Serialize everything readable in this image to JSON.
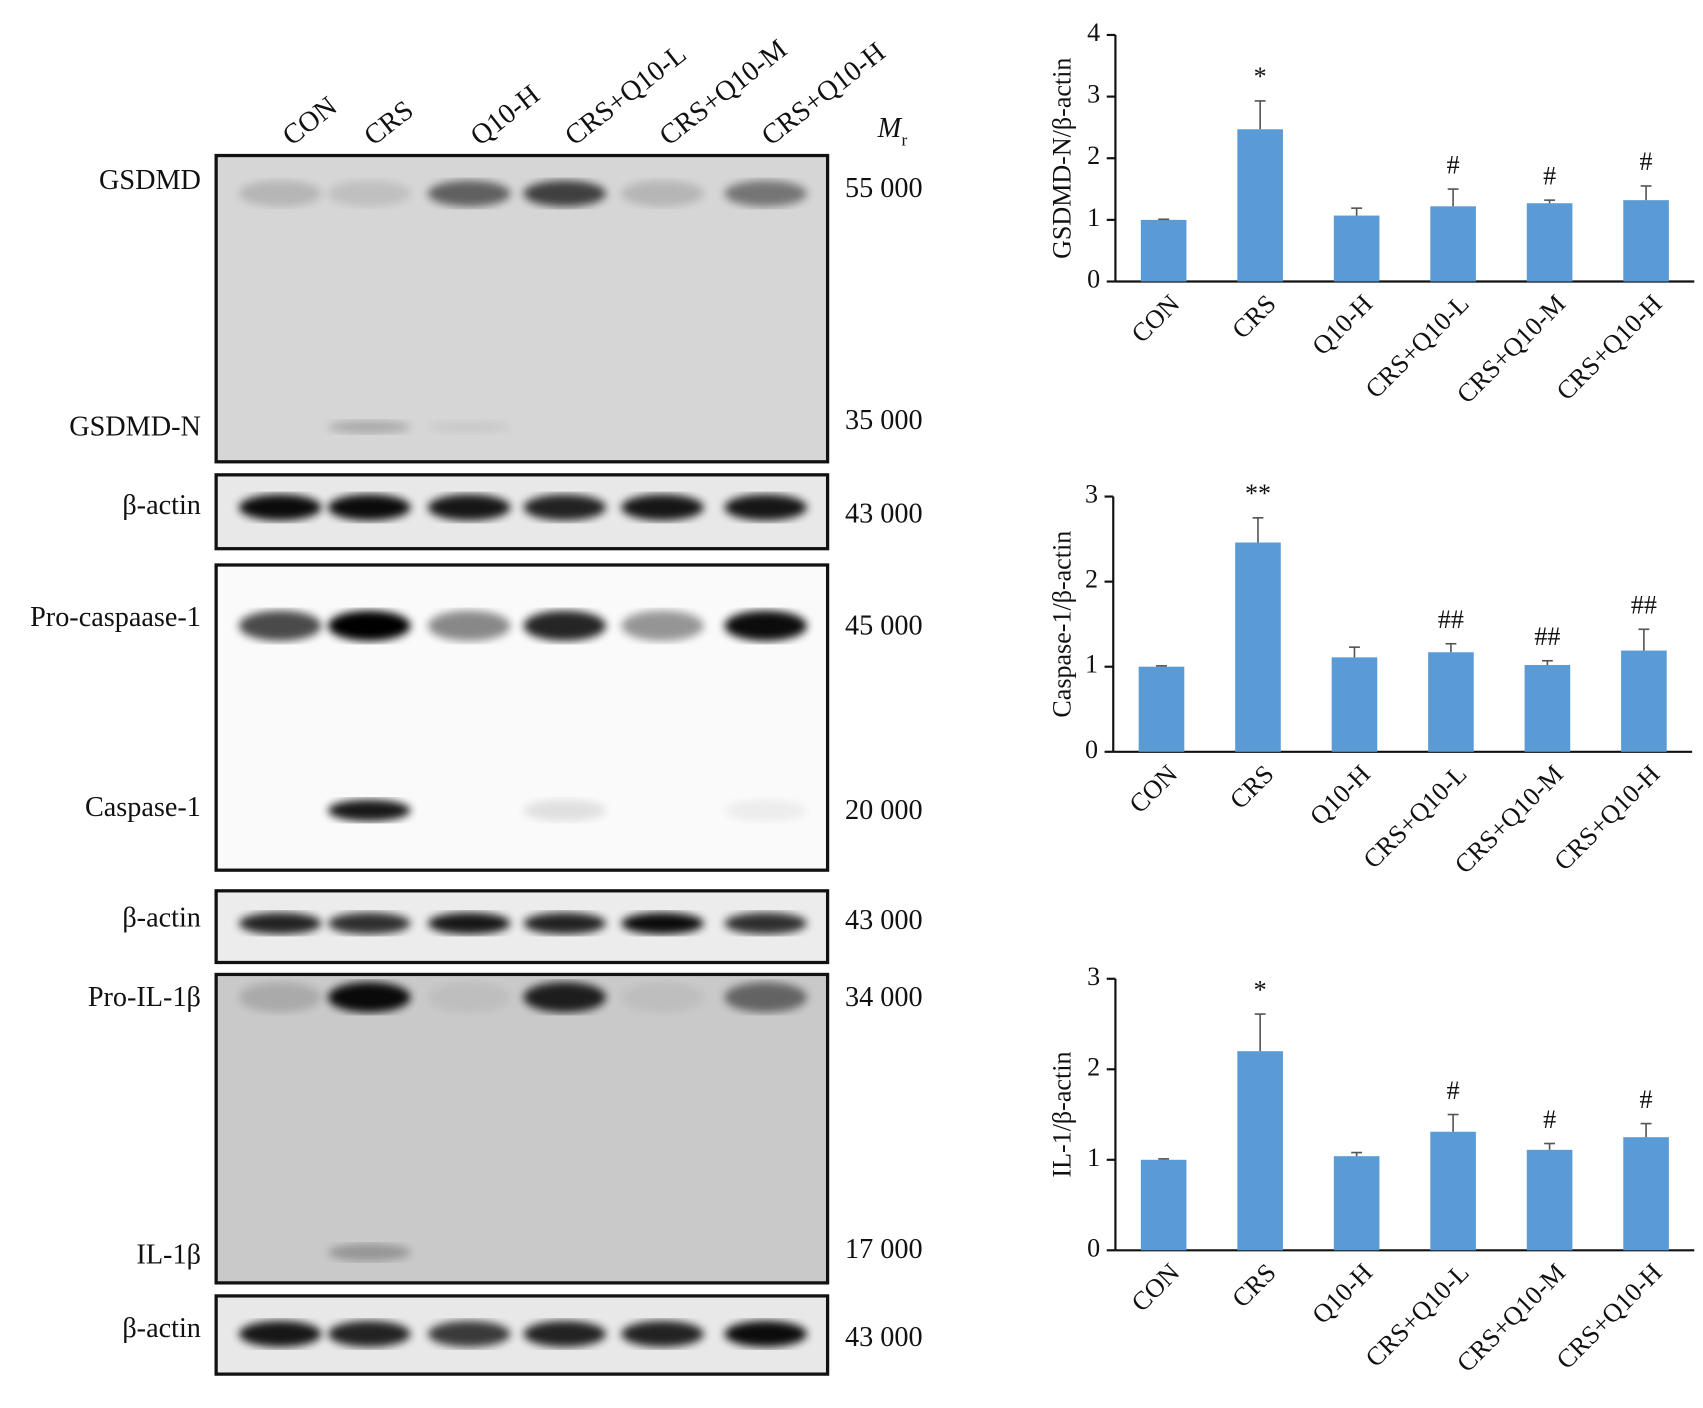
{
  "figure": {
    "lanes": [
      "CON",
      "CRS",
      "Q10-H",
      "CRS+Q10-L",
      "CRS+Q10-M",
      "CRS+Q10-H"
    ],
    "mr_label": {
      "main": "M",
      "sub": "r"
    },
    "rows": [
      {
        "label": "GSDMD",
        "mw": "55 000"
      },
      {
        "label": "GSDMD-N",
        "mw": "35 000"
      },
      {
        "label": "β-actin",
        "mw": "43 000"
      },
      {
        "label": "Pro-caspaase-1",
        "mw": "45 000"
      },
      {
        "label": "Caspase-1",
        "mw": "20 000"
      },
      {
        "label": "β-actin",
        "mw": "43 000"
      },
      {
        "label": "Pro-IL-1β",
        "mw": "34 000"
      },
      {
        "label": "IL-1β",
        "mw": "17 000"
      },
      {
        "label": "β-actin",
        "mw": "43 000"
      }
    ]
  },
  "chart_data": [
    {
      "type": "bar",
      "y_label": "GSDMD-N/β-actin",
      "color": "#5b9bd5",
      "categories": [
        "CON",
        "CRS",
        "Q10-H",
        "CRS+Q10-L",
        "CRS+Q10-M",
        "CRS+Q10-H"
      ],
      "values": [
        1.0,
        2.47,
        1.07,
        1.22,
        1.27,
        1.32
      ],
      "errors": [
        0.01,
        0.46,
        0.12,
        0.28,
        0.05,
        0.23
      ],
      "annotations": [
        null,
        "*",
        null,
        "#",
        "#",
        "#"
      ],
      "ylim": [
        0,
        4
      ],
      "yticks": [
        0,
        1,
        2,
        3,
        4
      ]
    },
    {
      "type": "bar",
      "y_label": "Caspase-1/β-actin",
      "color": "#5b9bd5",
      "categories": [
        "CON",
        "CRS",
        "Q10-H",
        "CRS+Q10-L",
        "CRS+Q10-M",
        "CRS+Q10-H"
      ],
      "values": [
        1.0,
        2.46,
        1.11,
        1.17,
        1.02,
        1.19
      ],
      "errors": [
        0.01,
        0.29,
        0.12,
        0.1,
        0.05,
        0.25
      ],
      "annotations": [
        null,
        "**",
        null,
        "##",
        "##",
        "##"
      ],
      "ylim": [
        0,
        3
      ],
      "yticks": [
        0,
        1,
        2,
        3
      ]
    },
    {
      "type": "bar",
      "y_label": "IL-1/β-actin",
      "color": "#5b9bd5",
      "categories": [
        "CON",
        "CRS",
        "Q10-H",
        "CRS+Q10-L",
        "CRS+Q10-M",
        "CRS+Q10-H"
      ],
      "values": [
        1.0,
        2.2,
        1.04,
        1.31,
        1.11,
        1.25
      ],
      "errors": [
        0.01,
        0.41,
        0.04,
        0.19,
        0.07,
        0.15
      ],
      "annotations": [
        null,
        "*",
        null,
        "#",
        "#",
        "#"
      ],
      "ylim": [
        0,
        3
      ],
      "yticks": [
        0,
        1,
        2,
        3
      ]
    }
  ]
}
